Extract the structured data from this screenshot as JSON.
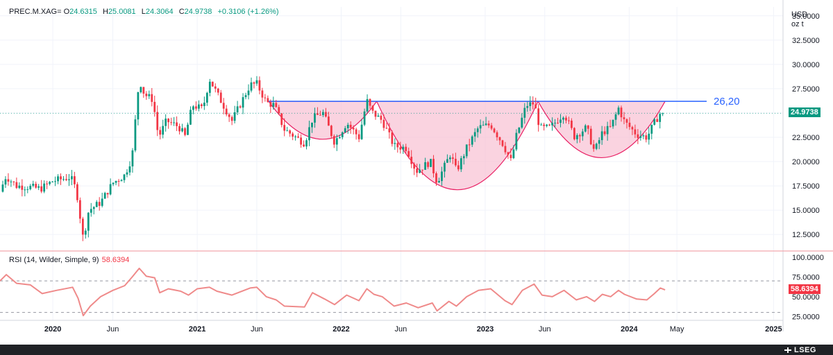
{
  "legend": {
    "symbol": "PREC.M.XAG=",
    "open_label": "O",
    "open": "24.6315",
    "high_label": "H",
    "high": "25.0081",
    "low_label": "L",
    "low": "24.3064",
    "close_label": "C",
    "close": "24.9738",
    "change": "+0.3106 (+1.26%)"
  },
  "unit": {
    "currency": "USD",
    "weight": "oz t"
  },
  "last_price_badge": "24.9738",
  "rsi": {
    "label": "RSI (14, Wilder, Simple, 9)",
    "value": "58.6394"
  },
  "brand": "LSEG",
  "colors": {
    "up": "#089981",
    "down": "#f23645",
    "resistance": "#2962ff",
    "pattern_fill": "#f8bbd0",
    "pattern_stroke": "#e91e63",
    "rsi_line": "#ef8a8a",
    "grid": "#f0f3fa",
    "axis_text": "#131722"
  },
  "chart_data": [
    {
      "type": "candlestick",
      "title": "",
      "series_name": "PREC.M.XAG=",
      "y_axis": {
        "ticks": [
          "35.0000",
          "32.5000",
          "30.0000",
          "27.5000",
          "25.0000",
          "22.5000",
          "20.0000",
          "17.5000",
          "15.0000",
          "12.5000"
        ],
        "range": [
          10.8,
          35.2
        ]
      },
      "x_axis": {
        "ticks": [
          {
            "label": "2020",
            "date": "2020-01-01",
            "bold": true
          },
          {
            "label": "Jun",
            "date": "2020-06-01",
            "bold": false
          },
          {
            "label": "2021",
            "date": "2021-01-01",
            "bold": true
          },
          {
            "label": "Jun",
            "date": "2021-06-01",
            "bold": false
          },
          {
            "label": "2022",
            "date": "2022-01-01",
            "bold": true
          },
          {
            "label": "Jun",
            "date": "2022-06-01",
            "bold": false
          },
          {
            "label": "2023",
            "date": "2023-01-01",
            "bold": true
          },
          {
            "label": "Jun",
            "date": "2023-06-01",
            "bold": false
          },
          {
            "label": "2024",
            "date": "2024-01-01",
            "bold": true
          },
          {
            "label": "May",
            "date": "2024-05-01",
            "bold": false
          },
          {
            "label": "2025",
            "date": "2025-01-01",
            "bold": true
          }
        ],
        "range": [
          "2019-08-20",
          "2025-01-25"
        ]
      },
      "close_path": [
        [
          "2019-08-20",
          16.9
        ],
        [
          "2019-09-04",
          18.5
        ],
        [
          "2019-10-01",
          17.5
        ],
        [
          "2019-11-01",
          17.4
        ],
        [
          "2019-12-01",
          17.2
        ],
        [
          "2020-01-01",
          18.0
        ],
        [
          "2020-02-15",
          18.4
        ],
        [
          "2020-03-01",
          17.0
        ],
        [
          "2020-03-18",
          12.0
        ],
        [
          "2020-04-01",
          15.0
        ],
        [
          "2020-05-01",
          15.8
        ],
        [
          "2020-06-01",
          17.8
        ],
        [
          "2020-07-01",
          18.6
        ],
        [
          "2020-07-20",
          20.5
        ],
        [
          "2020-08-01",
          26.0
        ],
        [
          "2020-08-07",
          28.5
        ],
        [
          "2020-08-20",
          26.9
        ],
        [
          "2020-09-10",
          26.4
        ],
        [
          "2020-09-25",
          22.5
        ],
        [
          "2020-10-15",
          24.2
        ],
        [
          "2020-11-15",
          23.6
        ],
        [
          "2020-12-01",
          22.6
        ],
        [
          "2020-12-20",
          25.8
        ],
        [
          "2021-01-15",
          25.4
        ],
        [
          "2021-02-01",
          28.5
        ],
        [
          "2021-02-20",
          27.0
        ],
        [
          "2021-03-30",
          24.2
        ],
        [
          "2021-05-15",
          27.9
        ],
        [
          "2021-06-01",
          28.0
        ],
        [
          "2021-06-25",
          26.1
        ],
        [
          "2021-07-15",
          25.8
        ],
        [
          "2021-08-10",
          23.3
        ],
        [
          "2021-09-30",
          21.9
        ],
        [
          "2021-10-20",
          24.4
        ],
        [
          "2021-11-15",
          25.1
        ],
        [
          "2021-12-15",
          22.0
        ],
        [
          "2022-01-15",
          24.0
        ],
        [
          "2022-02-15",
          22.5
        ],
        [
          "2022-03-07",
          26.3
        ],
        [
          "2022-03-20",
          25.1
        ],
        [
          "2022-04-15",
          24.2
        ],
        [
          "2022-05-15",
          21.6
        ],
        [
          "2022-06-15",
          21.4
        ],
        [
          "2022-07-10",
          19.0
        ],
        [
          "2022-08-15",
          20.0
        ],
        [
          "2022-09-01",
          17.9
        ],
        [
          "2022-10-05",
          20.8
        ],
        [
          "2022-10-20",
          19.0
        ],
        [
          "2022-11-15",
          21.4
        ],
        [
          "2022-12-15",
          23.5
        ],
        [
          "2023-01-15",
          23.8
        ],
        [
          "2023-02-15",
          21.8
        ],
        [
          "2023-03-08",
          20.0
        ],
        [
          "2023-03-20",
          22.5
        ],
        [
          "2023-04-15",
          25.8
        ],
        [
          "2023-05-05",
          26.0
        ],
        [
          "2023-05-20",
          23.4
        ],
        [
          "2023-06-15",
          23.5
        ],
        [
          "2023-07-20",
          25.0
        ],
        [
          "2023-08-15",
          22.6
        ],
        [
          "2023-09-15",
          23.5
        ],
        [
          "2023-10-05",
          21.0
        ],
        [
          "2023-10-25",
          23.0
        ],
        [
          "2023-11-15",
          23.5
        ],
        [
          "2023-12-05",
          25.5
        ],
        [
          "2023-12-20",
          24.1
        ],
        [
          "2024-01-20",
          22.8
        ],
        [
          "2024-02-15",
          22.5
        ],
        [
          "2024-03-05",
          24.0
        ],
        [
          "2024-03-20",
          25.0
        ],
        [
          "2024-04-01",
          24.9738
        ]
      ],
      "resistance": {
        "value": 26.2,
        "label": "26,20",
        "from": "2021-07-01",
        "to": "2024-04-01"
      },
      "cup_patterns": [
        {
          "from": "2021-07-01",
          "to": "2022-04-01",
          "bottom": 22.3
        },
        {
          "from": "2022-04-01",
          "to": "2023-05-15",
          "bottom": 17.1
        },
        {
          "from": "2023-05-15",
          "to": "2024-04-01",
          "bottom": 20.4
        }
      ],
      "last_value": 24.9738
    },
    {
      "type": "line",
      "title": "",
      "series_name": "RSI (14, Wilder, Simple, 9)",
      "y_axis": {
        "ticks": [
          "100.0000",
          "75.0000",
          "50.0000",
          "25.0000"
        ],
        "range": [
          20,
          108
        ],
        "bands": [
          70,
          30
        ]
      },
      "points": [
        [
          "2019-08-20",
          70
        ],
        [
          "2019-09-05",
          78
        ],
        [
          "2019-10-01",
          67
        ],
        [
          "2019-11-05",
          65
        ],
        [
          "2019-12-05",
          54
        ],
        [
          "2020-01-10",
          58
        ],
        [
          "2020-02-20",
          62
        ],
        [
          "2020-03-05",
          48
        ],
        [
          "2020-03-18",
          26
        ],
        [
          "2020-04-05",
          38
        ],
        [
          "2020-05-01",
          50
        ],
        [
          "2020-06-01",
          58
        ],
        [
          "2020-07-01",
          64
        ],
        [
          "2020-07-20",
          75
        ],
        [
          "2020-08-07",
          86
        ],
        [
          "2020-08-25",
          76
        ],
        [
          "2020-09-15",
          74
        ],
        [
          "2020-09-28",
          55
        ],
        [
          "2020-10-20",
          60
        ],
        [
          "2020-11-20",
          57
        ],
        [
          "2020-12-10",
          52
        ],
        [
          "2021-01-01",
          60
        ],
        [
          "2021-02-01",
          62
        ],
        [
          "2021-02-20",
          57
        ],
        [
          "2021-03-30",
          52
        ],
        [
          "2021-05-15",
          61
        ],
        [
          "2021-06-01",
          62
        ],
        [
          "2021-06-25",
          50
        ],
        [
          "2021-07-20",
          46
        ],
        [
          "2021-08-10",
          38
        ],
        [
          "2021-09-30",
          37
        ],
        [
          "2021-10-20",
          55
        ],
        [
          "2021-11-20",
          47
        ],
        [
          "2021-12-15",
          40
        ],
        [
          "2022-01-15",
          52
        ],
        [
          "2022-02-15",
          45
        ],
        [
          "2022-03-07",
          60
        ],
        [
          "2022-03-25",
          53
        ],
        [
          "2022-04-15",
          50
        ],
        [
          "2022-05-15",
          38
        ],
        [
          "2022-06-15",
          42
        ],
        [
          "2022-07-15",
          36
        ],
        [
          "2022-08-20",
          42
        ],
        [
          "2022-09-01",
          32
        ],
        [
          "2022-10-01",
          44
        ],
        [
          "2022-10-20",
          38
        ],
        [
          "2022-11-15",
          50
        ],
        [
          "2022-12-15",
          58
        ],
        [
          "2023-01-15",
          60
        ],
        [
          "2023-02-20",
          45
        ],
        [
          "2023-03-10",
          40
        ],
        [
          "2023-04-05",
          58
        ],
        [
          "2023-05-05",
          66
        ],
        [
          "2023-05-25",
          52
        ],
        [
          "2023-06-20",
          50
        ],
        [
          "2023-07-20",
          58
        ],
        [
          "2023-08-20",
          46
        ],
        [
          "2023-09-15",
          50
        ],
        [
          "2023-10-05",
          44
        ],
        [
          "2023-10-25",
          53
        ],
        [
          "2023-11-15",
          50
        ],
        [
          "2023-12-05",
          58
        ],
        [
          "2023-12-20",
          53
        ],
        [
          "2024-01-20",
          47
        ],
        [
          "2024-02-15",
          46
        ],
        [
          "2024-03-05",
          54
        ],
        [
          "2024-03-20",
          61
        ],
        [
          "2024-04-01",
          58.64
        ]
      ],
      "last_value": 58.6394
    }
  ]
}
